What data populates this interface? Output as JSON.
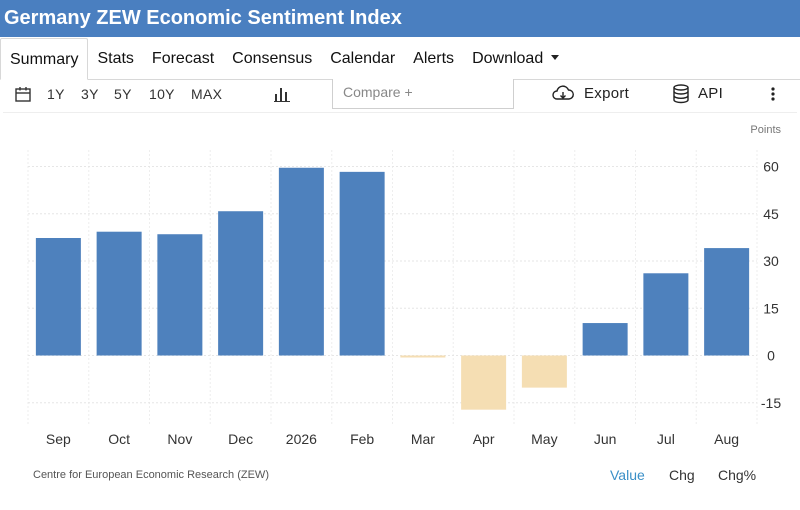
{
  "header": {
    "title": "Germany ZEW Economic Sentiment Index"
  },
  "tabs": [
    {
      "label": "Summary"
    },
    {
      "label": "Stats"
    },
    {
      "label": "Forecast"
    },
    {
      "label": "Consensus"
    },
    {
      "label": "Calendar"
    },
    {
      "label": "Alerts"
    },
    {
      "label": "Download"
    }
  ],
  "toolbar": {
    "ranges": [
      "1Y",
      "3Y",
      "5Y",
      "10Y",
      "MAX"
    ],
    "compare_placeholder": "Compare +",
    "export_label": "Export",
    "api_label": "API",
    "icons": [
      "calendar-icon",
      "bar-chart-icon",
      "cloud-download-icon",
      "database-icon",
      "more-vertical-icon"
    ]
  },
  "footer": {
    "source": "Centre for European Economic Research (ZEW)",
    "options": [
      "Value",
      "Chg",
      "Chg%"
    ],
    "selected": "Value"
  },
  "colors": {
    "header": "#4a7fc0",
    "positive": "#4e81bd",
    "negative": "#f5deb3",
    "accent_link": "#3a8fc7"
  },
  "chart_data": {
    "type": "bar",
    "categories": [
      "Sep",
      "Oct",
      "Nov",
      "Dec",
      "2026",
      "Feb",
      "Mar",
      "Apr",
      "May",
      "Jun",
      "Jul",
      "Aug"
    ],
    "values": [
      37.3,
      39.3,
      38.5,
      45.8,
      59.6,
      58.3,
      -0.5,
      -17.2,
      -10.2,
      10.3,
      26.1,
      34.1
    ],
    "ylabel": "Points",
    "yticks": [
      60,
      45,
      30,
      15,
      0,
      -15
    ],
    "ylim": [
      -20,
      65
    ],
    "y_axis_position": "right",
    "grid": true
  }
}
